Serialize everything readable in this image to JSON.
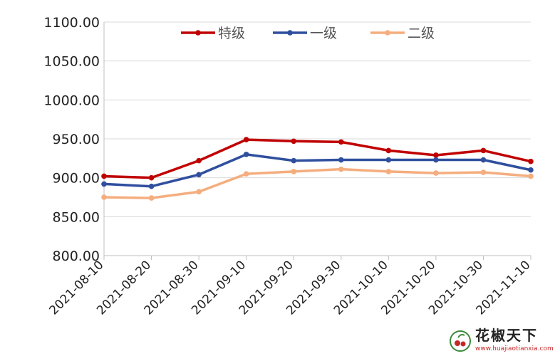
{
  "chart_data": {
    "type": "line",
    "title": "",
    "xlabel": "",
    "ylabel": "",
    "categories": [
      "2021-08-10",
      "2021-08-20",
      "2021-08-30",
      "2021-09-10",
      "2021-09-20",
      "2021-09-30",
      "2021-10-10",
      "2021-10-20",
      "2021-10-30",
      "2021-11-10"
    ],
    "y_ticks": [
      "800.00",
      "850.00",
      "900.00",
      "950.00",
      "1000.00",
      "1050.00",
      "1100.00"
    ],
    "ylim": [
      800,
      1100
    ],
    "grid": true,
    "legend_position": "top-center",
    "series": [
      {
        "name": "特级",
        "color": "#c00000",
        "values": [
          902,
          900,
          922,
          949,
          947,
          946,
          935,
          929,
          935,
          921
        ]
      },
      {
        "name": "一级",
        "color": "#2f4f9e",
        "values": [
          892,
          889,
          904,
          930,
          922,
          923,
          923,
          923,
          923,
          910
        ]
      },
      {
        "name": "二级",
        "color": "#f5ad7e",
        "values": [
          875,
          874,
          882,
          905,
          908,
          911,
          908,
          906,
          907,
          902
        ]
      }
    ]
  },
  "watermark": {
    "brand": "花椒天下",
    "url": "www.huajiaotianxia.com",
    "icon": "pepper-logo-icon"
  }
}
